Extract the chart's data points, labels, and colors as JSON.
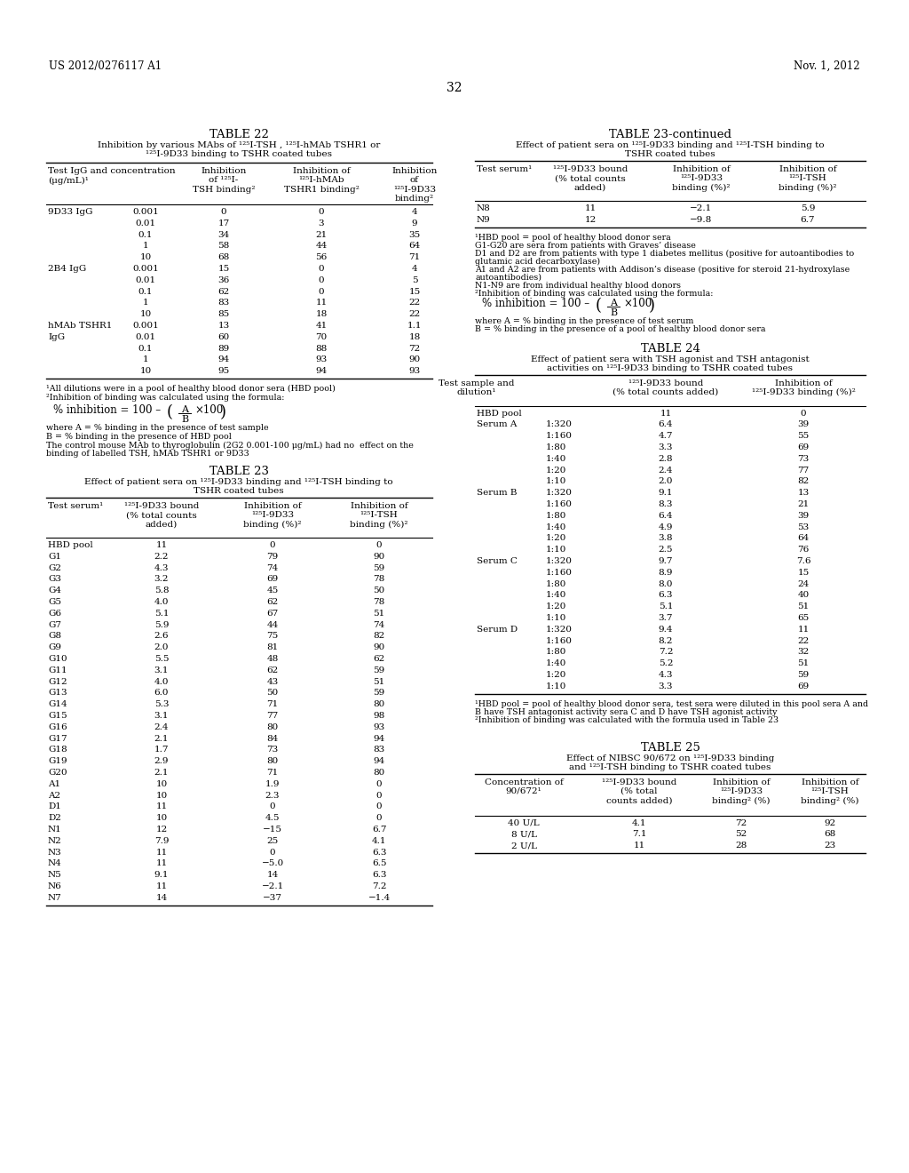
{
  "header_left": "US 2012/0276117 A1",
  "header_right": "Nov. 1, 2012",
  "page_number": "32",
  "bg_color": "#ffffff",
  "table22_title": "TABLE 22",
  "table22_subtitle": "Inhibition by various MAbs of ¹²⁵I-TSH , ¹²⁵I-hMAb TSHR1 or\n¹²⁵I-9D33 binding to TSHR coated tubes",
  "table22_data": [
    [
      "9D33 IgG",
      "0.001",
      "0",
      "0",
      "4"
    ],
    [
      "",
      "0.01",
      "17",
      "3",
      "9"
    ],
    [
      "",
      "0.1",
      "34",
      "21",
      "35"
    ],
    [
      "",
      "1",
      "58",
      "44",
      "64"
    ],
    [
      "",
      "10",
      "68",
      "56",
      "71"
    ],
    [
      "2B4 IgG",
      "0.001",
      "15",
      "0",
      "4"
    ],
    [
      "",
      "0.01",
      "36",
      "0",
      "5"
    ],
    [
      "",
      "0.1",
      "62",
      "0",
      "15"
    ],
    [
      "",
      "1",
      "83",
      "11",
      "22"
    ],
    [
      "",
      "10",
      "85",
      "18",
      "22"
    ],
    [
      "hMAb TSHR1",
      "0.001",
      "13",
      "41",
      "1.1"
    ],
    [
      "IgG",
      "0.01",
      "60",
      "70",
      "18"
    ],
    [
      "",
      "0.1",
      "89",
      "88",
      "72"
    ],
    [
      "",
      "1",
      "94",
      "93",
      "90"
    ],
    [
      "",
      "10",
      "95",
      "94",
      "93"
    ]
  ],
  "table23_title": "TABLE 23",
  "table23_subtitle": "Effect of patient sera on ¹²⁵I-9D33 binding and ¹²⁵I-TSH binding to\nTSHR coated tubes",
  "table23_data": [
    [
      "HBD pool",
      "11",
      "0",
      "0"
    ],
    [
      "G1",
      "2.2",
      "79",
      "90"
    ],
    [
      "G2",
      "4.3",
      "74",
      "59"
    ],
    [
      "G3",
      "3.2",
      "69",
      "78"
    ],
    [
      "G4",
      "5.8",
      "45",
      "50"
    ],
    [
      "G5",
      "4.0",
      "62",
      "78"
    ],
    [
      "G6",
      "5.1",
      "67",
      "51"
    ],
    [
      "G7",
      "5.9",
      "44",
      "74"
    ],
    [
      "G8",
      "2.6",
      "75",
      "82"
    ],
    [
      "G9",
      "2.0",
      "81",
      "90"
    ],
    [
      "G10",
      "5.5",
      "48",
      "62"
    ],
    [
      "G11",
      "3.1",
      "62",
      "59"
    ],
    [
      "G12",
      "4.0",
      "43",
      "51"
    ],
    [
      "G13",
      "6.0",
      "50",
      "59"
    ],
    [
      "G14",
      "5.3",
      "71",
      "80"
    ],
    [
      "G15",
      "3.1",
      "77",
      "98"
    ],
    [
      "G16",
      "2.4",
      "80",
      "93"
    ],
    [
      "G17",
      "2.1",
      "84",
      "94"
    ],
    [
      "G18",
      "1.7",
      "73",
      "83"
    ],
    [
      "G19",
      "2.9",
      "80",
      "94"
    ],
    [
      "G20",
      "2.1",
      "71",
      "80"
    ],
    [
      "A1",
      "10",
      "1.9",
      "0"
    ],
    [
      "A2",
      "10",
      "2.3",
      "0"
    ],
    [
      "D1",
      "11",
      "0",
      "0"
    ],
    [
      "D2",
      "10",
      "4.5",
      "0"
    ],
    [
      "N1",
      "12",
      "−15",
      "6.7"
    ],
    [
      "N2",
      "7.9",
      "25",
      "4.1"
    ],
    [
      "N3",
      "11",
      "0",
      "6.3"
    ],
    [
      "N4",
      "11",
      "−5.0",
      "6.5"
    ],
    [
      "N5",
      "9.1",
      "14",
      "6.3"
    ],
    [
      "N6",
      "11",
      "−2.1",
      "7.2"
    ],
    [
      "N7",
      "14",
      "−37",
      "−1.4"
    ]
  ],
  "table23cont_title": "TABLE 23-continued",
  "table23cont_subtitle": "Effect of patient sera on ¹²⁵I-9D33 binding and ¹²⁵I-TSH binding to\nTSHR coated tubes",
  "table23cont_data": [
    [
      "N8",
      "11",
      "−2.1",
      "5.9"
    ],
    [
      "N9",
      "12",
      "−9.8",
      "6.7"
    ]
  ],
  "table24_title": "TABLE 24",
  "table24_subtitle": "Effect of patient sera with TSH agonist and TSH antagonist\nactivities on ¹²⁵I-9D33 binding to TSHR coated tubes",
  "table24_data": [
    [
      "HBD pool",
      "",
      "11",
      "0"
    ],
    [
      "Serum A",
      "1:320",
      "6.4",
      "39"
    ],
    [
      "",
      "1:160",
      "4.7",
      "55"
    ],
    [
      "",
      "1:80",
      "3.3",
      "69"
    ],
    [
      "",
      "1:40",
      "2.8",
      "73"
    ],
    [
      "",
      "1:20",
      "2.4",
      "77"
    ],
    [
      "",
      "1:10",
      "2.0",
      "82"
    ],
    [
      "Serum B",
      "1:320",
      "9.1",
      "13"
    ],
    [
      "",
      "1:160",
      "8.3",
      "21"
    ],
    [
      "",
      "1:80",
      "6.4",
      "39"
    ],
    [
      "",
      "1:40",
      "4.9",
      "53"
    ],
    [
      "",
      "1:20",
      "3.8",
      "64"
    ],
    [
      "",
      "1:10",
      "2.5",
      "76"
    ],
    [
      "Serum C",
      "1:320",
      "9.7",
      "7.6"
    ],
    [
      "",
      "1:160",
      "8.9",
      "15"
    ],
    [
      "",
      "1:80",
      "8.0",
      "24"
    ],
    [
      "",
      "1:40",
      "6.3",
      "40"
    ],
    [
      "",
      "1:20",
      "5.1",
      "51"
    ],
    [
      "",
      "1:10",
      "3.7",
      "65"
    ],
    [
      "Serum D",
      "1:320",
      "9.4",
      "11"
    ],
    [
      "",
      "1:160",
      "8.2",
      "22"
    ],
    [
      "",
      "1:80",
      "7.2",
      "32"
    ],
    [
      "",
      "1:40",
      "5.2",
      "51"
    ],
    [
      "",
      "1:20",
      "4.3",
      "59"
    ],
    [
      "",
      "1:10",
      "3.3",
      "69"
    ]
  ],
  "table25_title": "TABLE 25",
  "table25_subtitle": "Effect of NIBSC 90/672 on ¹²⁵I-9D33 binding\nand ¹²⁵I-TSH binding to TSHR coated tubes",
  "table25_data": [
    [
      "40 U/L",
      "4.1",
      "72",
      "92"
    ],
    [
      "8 U/L",
      "7.1",
      "52",
      "68"
    ],
    [
      "2 U/L",
      "11",
      "28",
      "23"
    ]
  ]
}
